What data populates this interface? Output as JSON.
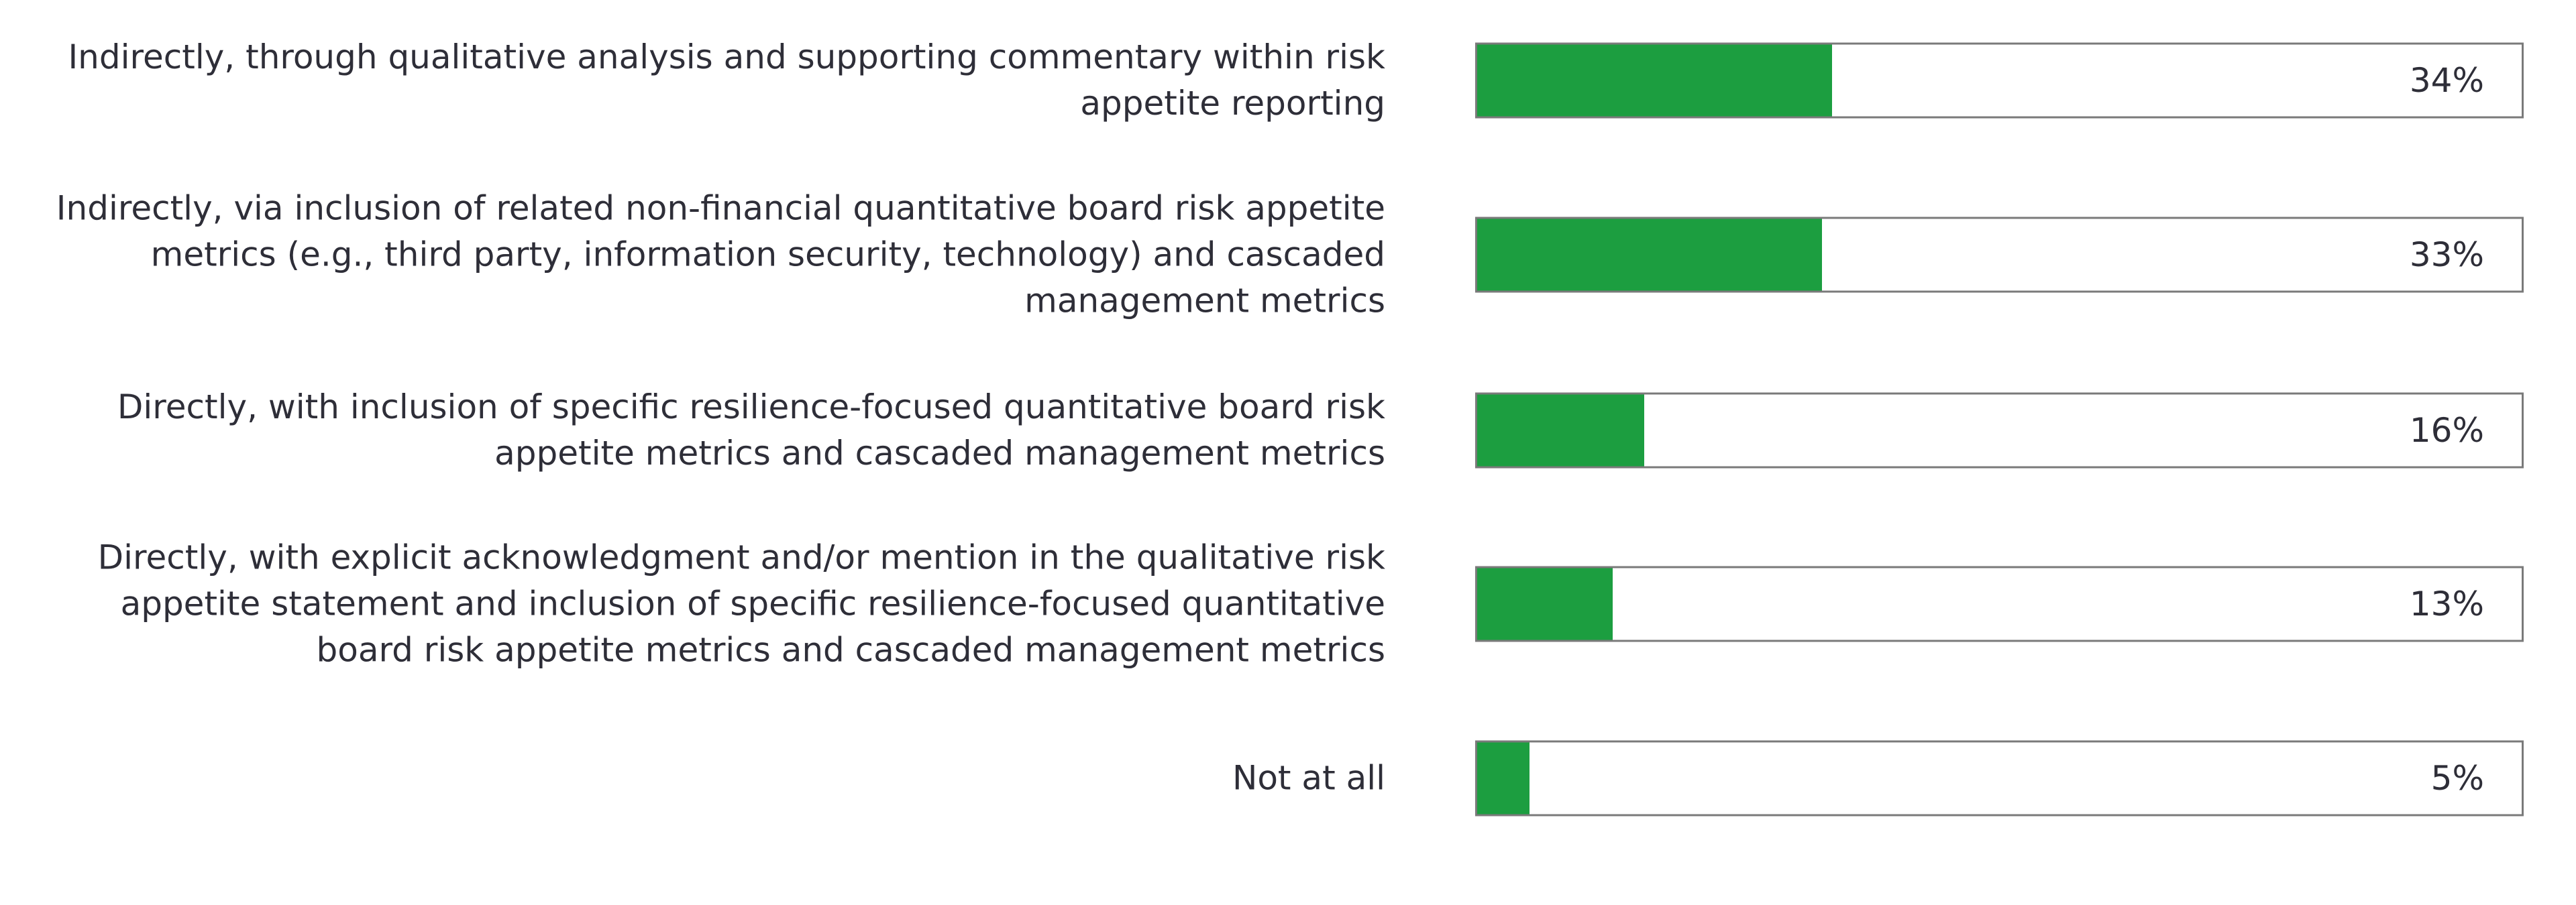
{
  "chart_data": {
    "type": "bar",
    "orientation": "horizontal",
    "categories": [
      "Indirectly, through qualitative analysis and supporting commentary within risk appetite reporting",
      "Indirectly, via inclusion of related non-financial quantitative board risk appetite metrics (e.g., third party, information security, technology) and cascaded management metrics",
      "Directly, with inclusion of specific resilience-focused quantitative board risk appetite metrics and cascaded management metrics",
      "Directly, with explicit acknowledgment and/or mention in the qualitative risk appetite statement and inclusion of specific resilience-focused quantitative board risk appetite metrics and cascaded management metrics",
      "Not at all"
    ],
    "values": [
      34,
      33,
      16,
      13,
      5
    ],
    "value_labels": [
      "34%",
      "33%",
      "16%",
      "13%",
      "5%"
    ],
    "color": "#1c9e40",
    "xlim": [
      0,
      100
    ]
  }
}
